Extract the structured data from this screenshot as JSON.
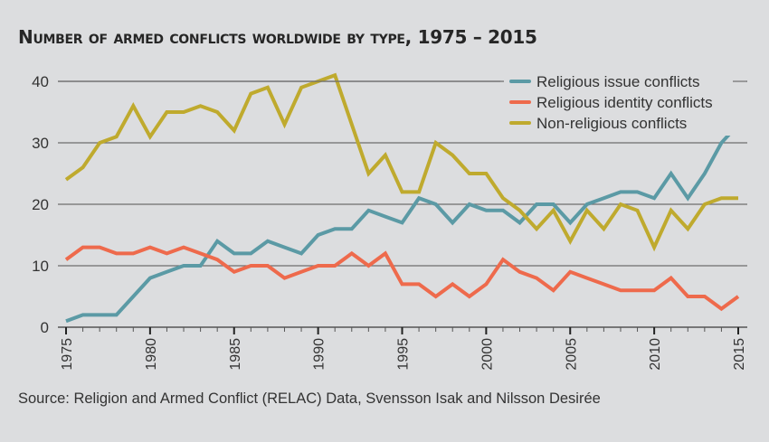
{
  "chart_data": {
    "type": "line",
    "title": "Number of armed conflicts worldwide by type, 1975 – 2015",
    "xlabel": "",
    "ylabel": "",
    "x": [
      1975,
      1976,
      1977,
      1978,
      1979,
      1980,
      1981,
      1982,
      1983,
      1984,
      1985,
      1986,
      1987,
      1988,
      1989,
      1990,
      1991,
      1992,
      1993,
      1994,
      1995,
      1996,
      1997,
      1998,
      1999,
      2000,
      2001,
      2002,
      2003,
      2004,
      2005,
      2006,
      2007,
      2008,
      2009,
      2010,
      2011,
      2012,
      2013,
      2014,
      2015
    ],
    "xlim": [
      1975,
      2015
    ],
    "ylim": [
      0,
      40
    ],
    "xticks": [
      "1975",
      "1980",
      "1985",
      "1990",
      "1995",
      "2000",
      "2005",
      "2010",
      "2015"
    ],
    "yticks": [
      "0",
      "10",
      "20",
      "30",
      "40"
    ],
    "grid": "horizontal",
    "legend_position": "top-right",
    "series": [
      {
        "name": "Religious issue conflicts",
        "color": "#5b9aa5",
        "values": [
          1,
          2,
          2,
          2,
          5,
          8,
          9,
          10,
          10,
          14,
          12,
          12,
          14,
          13,
          12,
          15,
          16,
          16,
          19,
          18,
          17,
          21,
          20,
          17,
          20,
          19,
          19,
          17,
          20,
          20,
          17,
          20,
          21,
          22,
          22,
          21,
          25,
          21,
          25,
          30,
          33
        ]
      },
      {
        "name": "Religious identity conflicts",
        "color": "#ee6a4c",
        "values": [
          11,
          13,
          13,
          12,
          12,
          13,
          12,
          13,
          12,
          11,
          9,
          10,
          10,
          8,
          9,
          10,
          10,
          12,
          10,
          12,
          7,
          7,
          5,
          7,
          5,
          7,
          11,
          9,
          8,
          6,
          9,
          8,
          7,
          6,
          6,
          6,
          8,
          5,
          5,
          3,
          5
        ]
      },
      {
        "name": "Non-religious conflicts",
        "color": "#bfaa2e",
        "values": [
          24,
          26,
          30,
          31,
          36,
          31,
          35,
          35,
          36,
          35,
          32,
          38,
          39,
          33,
          39,
          40,
          41,
          33,
          25,
          28,
          22,
          22,
          30,
          28,
          25,
          25,
          21,
          19,
          16,
          19,
          14,
          19,
          16,
          20,
          19,
          13,
          19,
          16,
          20,
          21,
          21
        ]
      }
    ],
    "source": "Source: Religion and Armed Conflict (RELAC) Data, Svensson Isak and Nilsson Desirée"
  }
}
